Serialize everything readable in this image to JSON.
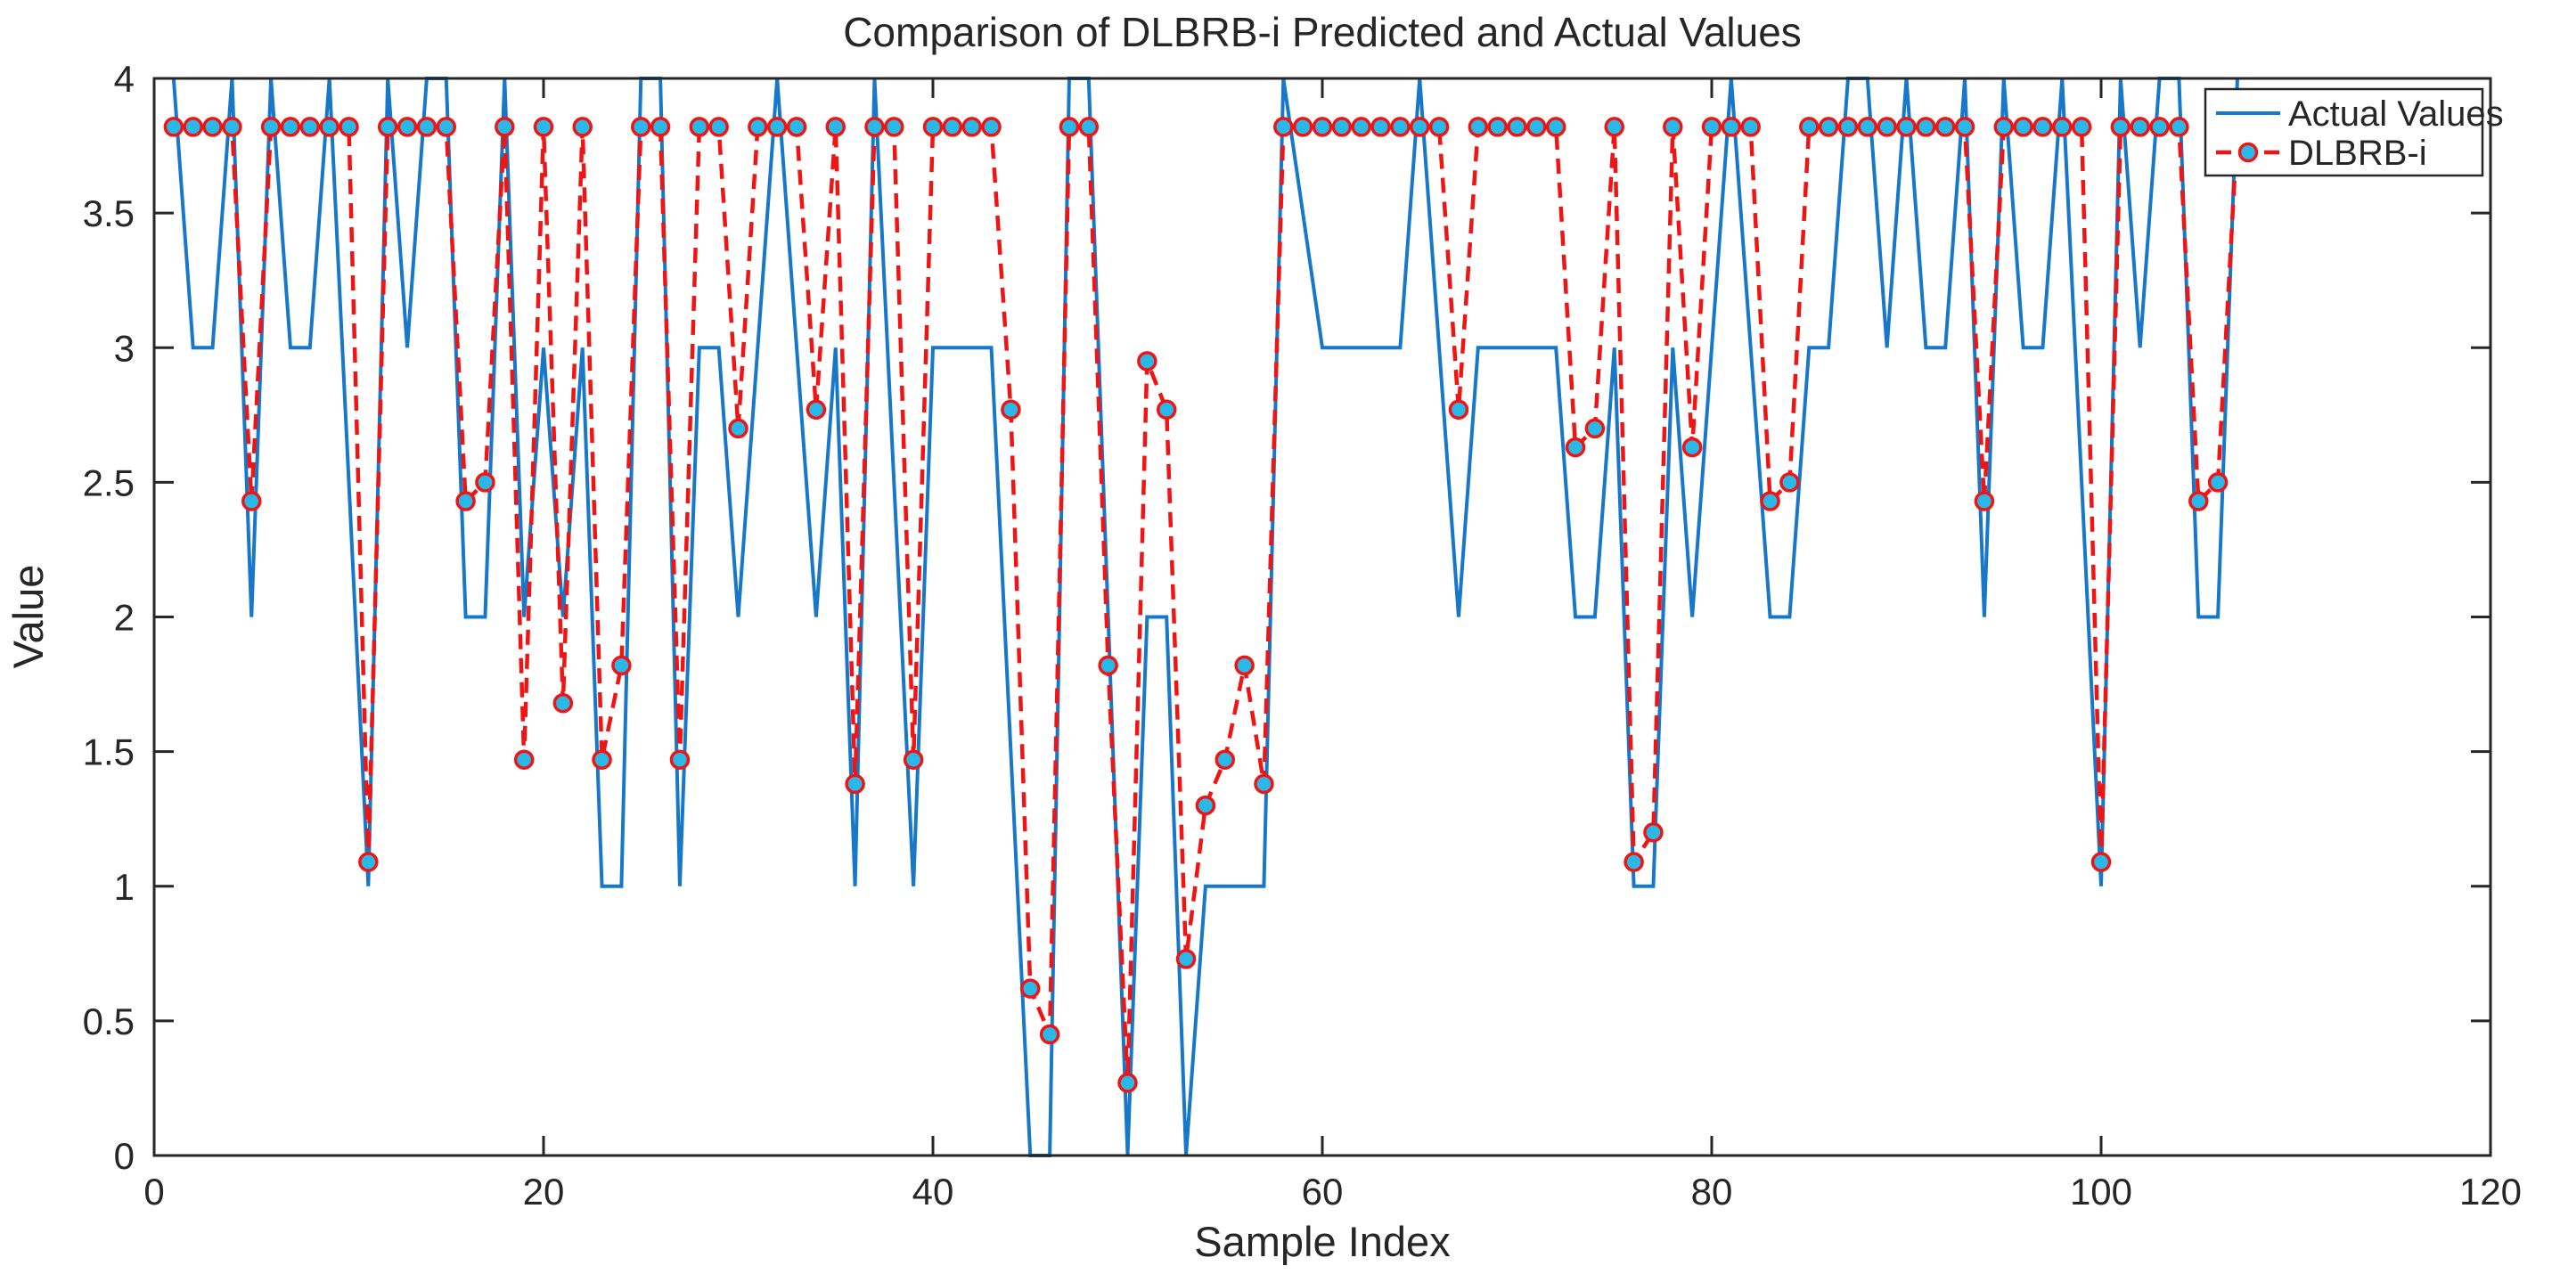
{
  "chart_data": {
    "type": "line",
    "title": "Comparison of DLBRB-i Predicted and Actual Values",
    "xlabel": "Sample Index",
    "ylabel": "Value",
    "xlim": [
      0,
      120
    ],
    "ylim": [
      0,
      4
    ],
    "x_ticks": [
      "0",
      "20",
      "40",
      "60",
      "80",
      "100",
      "120"
    ],
    "x_tick_values": [
      0,
      20,
      40,
      60,
      80,
      100,
      120
    ],
    "y_ticks": [
      "0",
      "0.5",
      "1",
      "1.5",
      "2",
      "2.5",
      "3",
      "3.5",
      "4"
    ],
    "y_tick_values": [
      0,
      0.5,
      1,
      1.5,
      2,
      2.5,
      3,
      3.5,
      4
    ],
    "grid": false,
    "legend_position": "top-right",
    "x_start_index": 1,
    "axis_color": "#262626",
    "background_color": "#ffffff",
    "series": [
      {
        "name": "Actual Values",
        "color": "#1777C9",
        "line_style": "solid",
        "marker": "none",
        "values": [
          4,
          3,
          3,
          4,
          2,
          4,
          3,
          3,
          4,
          2.5,
          1,
          4,
          3,
          4,
          4,
          2,
          2,
          4,
          2,
          3,
          2,
          3,
          1,
          1,
          4,
          4,
          1,
          3,
          3,
          2,
          3,
          4,
          3,
          2,
          3,
          1,
          4,
          2.5,
          1,
          3,
          3,
          3,
          3,
          1.5,
          0,
          0,
          4,
          4,
          2,
          0,
          2,
          2,
          0,
          1,
          1,
          1,
          1,
          4,
          3.5,
          3,
          3,
          3,
          3,
          3,
          4,
          3,
          2,
          3,
          3,
          3,
          3,
          3,
          2,
          2,
          3,
          1,
          1,
          3,
          2,
          3,
          4,
          3,
          2,
          2,
          3,
          3,
          4,
          4,
          3,
          4,
          3,
          3,
          4,
          2,
          4,
          3,
          3,
          4,
          2.5,
          1,
          4,
          3,
          4,
          4,
          2,
          2,
          4
        ]
      },
      {
        "name": "DLBRB-i",
        "color": "#F01515",
        "line_style": "dashed",
        "marker": "circle",
        "marker_fill": "#29B9E8",
        "marker_edge": "#F01515",
        "values": [
          3.82,
          3.82,
          3.82,
          3.82,
          2.43,
          3.82,
          3.82,
          3.82,
          3.82,
          3.82,
          1.09,
          3.82,
          3.82,
          3.82,
          3.82,
          2.43,
          2.5,
          3.82,
          1.47,
          3.82,
          1.68,
          3.82,
          1.47,
          1.82,
          3.82,
          3.82,
          1.47,
          3.82,
          3.82,
          2.7,
          3.82,
          3.82,
          3.82,
          2.77,
          3.82,
          1.38,
          3.82,
          3.82,
          1.47,
          3.82,
          3.82,
          3.82,
          3.82,
          2.77,
          0.62,
          0.45,
          3.82,
          3.82,
          1.82,
          0.27,
          2.95,
          2.77,
          0.73,
          1.3,
          1.47,
          1.82,
          1.38,
          3.82,
          3.82,
          3.82,
          3.82,
          3.82,
          3.82,
          3.82,
          3.82,
          3.82,
          2.77,
          3.82,
          3.82,
          3.82,
          3.82,
          3.82,
          2.63,
          2.7,
          3.82,
          1.09,
          1.2,
          3.82,
          2.63,
          3.82,
          3.82,
          3.82,
          2.43,
          2.5,
          3.82,
          3.82,
          3.82,
          3.82,
          3.82,
          3.82,
          3.82,
          3.82,
          3.82,
          2.43,
          3.82,
          3.82,
          3.82,
          3.82,
          3.82,
          1.09,
          3.82,
          3.82,
          3.82,
          3.82,
          2.43,
          2.5,
          3.82
        ]
      }
    ]
  },
  "legend": {
    "entries": [
      {
        "label": "Actual Values"
      },
      {
        "label": "DLBRB-i"
      }
    ]
  }
}
